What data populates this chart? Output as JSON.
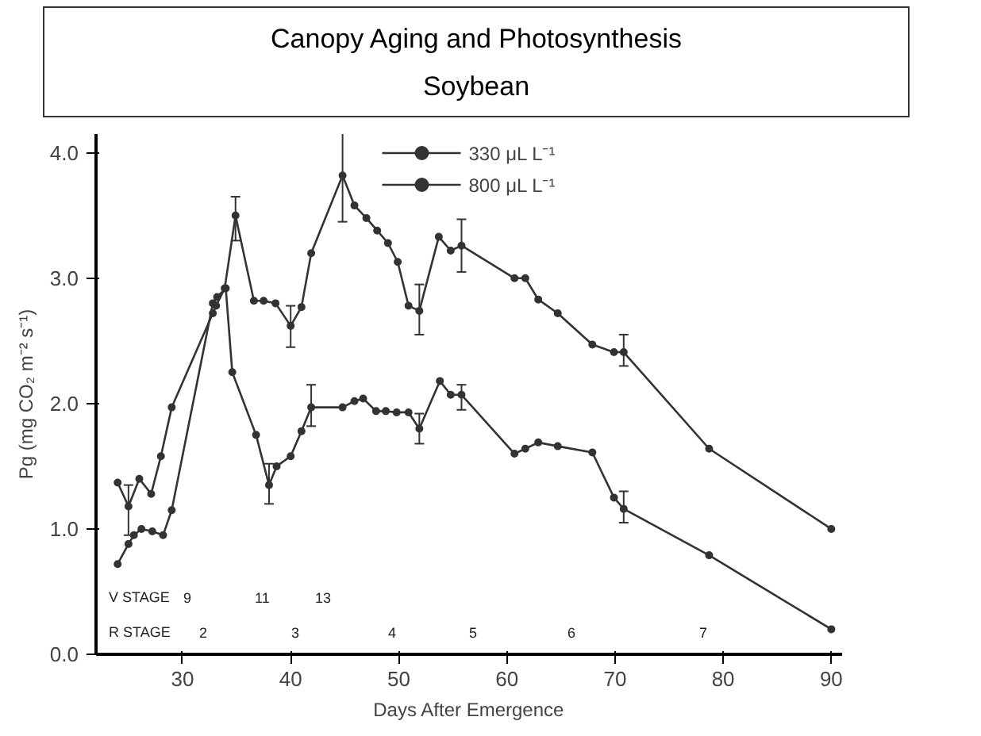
{
  "chart_data": {
    "type": "line",
    "title": "Canopy Aging and Photosynthesis",
    "subtitle": "Soybean",
    "xlabel": "Days After Emergence",
    "ylabel": "Pg (mg CO₂ m⁻² s⁻¹)",
    "xlim": [
      22,
      91
    ],
    "xticks": [
      30,
      40,
      50,
      60,
      70,
      80,
      90
    ],
    "ylim": [
      0,
      4.15
    ],
    "yticks": [
      {
        "value": 0,
        "label": "0.0"
      },
      {
        "value": 1,
        "label": "1.0"
      },
      {
        "value": 2,
        "label": "2.0"
      },
      {
        "value": 3,
        "label": "3.0"
      },
      {
        "value": 4,
        "label": "4.0"
      }
    ],
    "grid": false,
    "legend": "top",
    "marker": "circle",
    "line_style": "solid",
    "series": [
      {
        "name": "330 μL L⁻¹",
        "color": "#333333",
        "x": [
          24.0,
          25.0,
          25.5,
          26.2,
          27.2,
          28.2,
          29.0,
          32.8,
          33.2,
          34.0,
          34.6,
          36.8,
          38.0,
          38.7,
          40.0,
          41.0,
          41.9,
          44.8,
          45.9,
          46.7,
          47.9,
          48.8,
          49.8,
          50.9,
          51.9,
          53.8,
          54.8,
          55.8,
          60.7,
          61.7,
          62.9,
          64.7,
          67.9,
          69.9,
          70.8,
          78.7,
          90.0
        ],
        "values": [
          0.72,
          0.88,
          0.95,
          1.0,
          0.98,
          0.95,
          1.15,
          2.8,
          2.85,
          2.92,
          2.25,
          1.75,
          1.35,
          1.5,
          1.58,
          1.78,
          1.97,
          1.97,
          2.02,
          2.04,
          1.94,
          1.94,
          1.93,
          1.93,
          1.8,
          2.18,
          2.07,
          2.07,
          1.6,
          1.64,
          1.69,
          1.66,
          1.61,
          1.25,
          1.16,
          0.79,
          0.2
        ],
        "errors": [
          null,
          null,
          null,
          null,
          null,
          null,
          null,
          null,
          null,
          null,
          null,
          null,
          [
            1.2,
            1.52
          ],
          null,
          null,
          null,
          [
            1.82,
            2.15
          ],
          null,
          null,
          null,
          null,
          null,
          null,
          null,
          [
            1.68,
            1.92
          ],
          null,
          null,
          [
            1.95,
            2.15
          ],
          null,
          null,
          null,
          null,
          null,
          null,
          [
            1.05,
            1.3
          ],
          null,
          null
        ]
      },
      {
        "name": "800 μL L⁻¹",
        "color": "#333333",
        "x": [
          24.0,
          25.0,
          26.0,
          27.1,
          28.0,
          29.0,
          32.8,
          33.1,
          33.9,
          34.9,
          36.6,
          37.5,
          38.6,
          40.0,
          41.0,
          41.9,
          44.8,
          45.9,
          47.0,
          48.0,
          49.0,
          49.9,
          50.9,
          51.9,
          53.7,
          54.8,
          55.8,
          60.7,
          61.7,
          62.9,
          64.7,
          67.9,
          69.9,
          70.8,
          78.7,
          90.0
        ],
        "values": [
          1.37,
          1.18,
          1.4,
          1.28,
          1.58,
          1.97,
          2.72,
          2.78,
          2.92,
          3.5,
          2.82,
          2.82,
          2.8,
          2.62,
          2.77,
          3.2,
          3.82,
          3.58,
          3.48,
          3.38,
          3.28,
          3.13,
          2.78,
          2.74,
          3.33,
          3.22,
          3.26,
          3.0,
          3.0,
          2.83,
          2.72,
          2.47,
          2.41,
          2.41,
          1.64,
          1.0
        ],
        "errors": [
          null,
          [
            0.95,
            1.35
          ],
          null,
          null,
          null,
          null,
          null,
          null,
          null,
          [
            3.3,
            3.65
          ],
          null,
          null,
          null,
          [
            2.45,
            2.78
          ],
          null,
          null,
          [
            3.45,
            4.18
          ],
          null,
          null,
          null,
          null,
          null,
          null,
          [
            2.55,
            2.95
          ],
          null,
          null,
          [
            3.05,
            3.47
          ],
          null,
          null,
          null,
          null,
          null,
          null,
          [
            2.3,
            2.55
          ],
          null,
          null
        ]
      }
    ],
    "annotations": [
      "V STAGE",
      "9",
      "11",
      "13",
      "R STAGE",
      "2",
      "3",
      "4",
      "5",
      "6",
      "7"
    ]
  }
}
